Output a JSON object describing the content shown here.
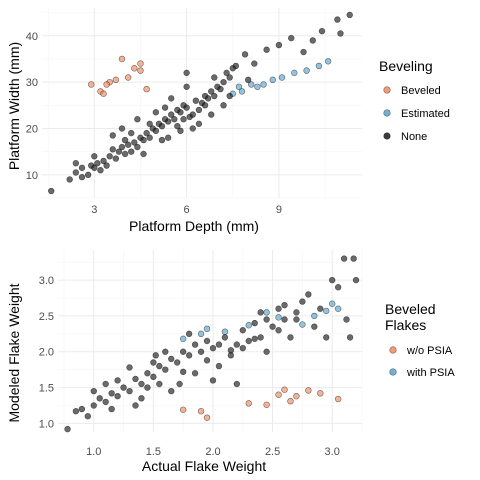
{
  "chart_data": [
    {
      "type": "scatter",
      "xlabel": "Platform Depth (mm)",
      "ylabel": "Platform Width (mm)",
      "xlim": [
        1.3,
        11.7
      ],
      "ylim": [
        5,
        46
      ],
      "xticks": [
        "3",
        "6",
        "9"
      ],
      "xtick_values": [
        3,
        6,
        9
      ],
      "yticks": [
        "10",
        "20",
        "30",
        "40"
      ],
      "ytick_values": [
        10,
        20,
        30,
        40
      ],
      "grid": true,
      "legend": {
        "title_lines": [
          "Beveling"
        ],
        "placement": "right",
        "entries": [
          {
            "label": "Beveled",
            "color": "#f08a5d"
          },
          {
            "label": "Estimated",
            "color": "#5aa3cc"
          },
          {
            "label": "None",
            "color": "#1a1a1a"
          }
        ]
      },
      "series": [
        {
          "name": "Beveled",
          "color": "#f08a5d",
          "points": [
            [
              2.9,
              29.5
            ],
            [
              3.2,
              28
            ],
            [
              3.3,
              27.5
            ],
            [
              3.5,
              30
            ],
            [
              3.7,
              30.5
            ],
            [
              3.9,
              35
            ],
            [
              4.1,
              31
            ],
            [
              4.3,
              33
            ],
            [
              4.5,
              32.5
            ],
            [
              4.5,
              34
            ],
            [
              4.7,
              28.5
            ],
            [
              3.4,
              29.5
            ]
          ]
        },
        {
          "name": "Estimated",
          "color": "#5aa3cc",
          "points": [
            [
              7.5,
              27.5
            ],
            [
              7.8,
              28
            ],
            [
              8.1,
              29.5
            ],
            [
              8.5,
              29.5
            ],
            [
              8.8,
              30.5
            ],
            [
              9.1,
              31
            ],
            [
              9.5,
              32
            ],
            [
              9.9,
              32.5
            ],
            [
              10.3,
              33.5
            ],
            [
              10.6,
              34.5
            ],
            [
              8.3,
              29
            ],
            [
              7.7,
              29
            ]
          ]
        },
        {
          "name": "None",
          "color": "#1a1a1a",
          "points": [
            [
              1.6,
              6.5
            ],
            [
              2.2,
              9
            ],
            [
              2.4,
              10.5
            ],
            [
              2.6,
              11.5
            ],
            [
              2.8,
              10
            ],
            [
              2.9,
              12
            ],
            [
              3.0,
              11.5
            ],
            [
              3.1,
              12.5
            ],
            [
              3.2,
              11
            ],
            [
              3.3,
              13
            ],
            [
              3.4,
              12
            ],
            [
              3.5,
              14
            ],
            [
              3.6,
              15.5
            ],
            [
              3.7,
              13.5
            ],
            [
              3.8,
              15
            ],
            [
              3.9,
              16
            ],
            [
              4.0,
              14.5
            ],
            [
              4.1,
              16.5
            ],
            [
              4.2,
              15
            ],
            [
              4.3,
              17
            ],
            [
              4.4,
              16
            ],
            [
              4.5,
              18
            ],
            [
              4.6,
              17.5
            ],
            [
              4.7,
              19
            ],
            [
              4.8,
              18
            ],
            [
              4.9,
              20
            ],
            [
              5.0,
              19.5
            ],
            [
              5.1,
              21
            ],
            [
              5.2,
              20.5
            ],
            [
              5.3,
              22
            ],
            [
              5.4,
              21.5
            ],
            [
              5.5,
              23
            ],
            [
              5.6,
              22
            ],
            [
              5.7,
              24
            ],
            [
              5.8,
              23.5
            ],
            [
              5.9,
              25
            ],
            [
              6.0,
              24.5
            ],
            [
              6.1,
              22.5
            ],
            [
              6.2,
              23
            ],
            [
              6.3,
              26
            ],
            [
              6.4,
              24
            ],
            [
              6.5,
              25.5
            ],
            [
              6.6,
              27
            ],
            [
              6.7,
              26.5
            ],
            [
              6.8,
              28
            ],
            [
              6.9,
              27
            ],
            [
              7.0,
              29
            ],
            [
              7.1,
              28.5
            ],
            [
              7.2,
              30
            ],
            [
              7.3,
              32
            ],
            [
              7.4,
              31
            ],
            [
              7.6,
              33.5
            ],
            [
              7.9,
              36
            ],
            [
              8.2,
              34
            ],
            [
              8.6,
              37
            ],
            [
              9.0,
              38
            ],
            [
              9.4,
              39.5
            ],
            [
              9.8,
              36.5
            ],
            [
              10.4,
              41
            ],
            [
              10.9,
              43.5
            ],
            [
              11.3,
              44.5
            ],
            [
              11.0,
              40.5
            ],
            [
              10.1,
              39
            ],
            [
              5.4,
              18
            ],
            [
              5.8,
              19.5
            ],
            [
              6.2,
              20
            ],
            [
              4.8,
              21
            ],
            [
              5.0,
              23.5
            ],
            [
              4.2,
              19
            ],
            [
              3.9,
              20
            ],
            [
              6.8,
              23
            ],
            [
              7.2,
              25
            ],
            [
              6.0,
              29
            ],
            [
              5.5,
              26.5
            ],
            [
              6.9,
              31
            ],
            [
              7.5,
              33
            ],
            [
              3.0,
              14
            ],
            [
              2.6,
              9.5
            ],
            [
              5.2,
              17.5
            ],
            [
              4.6,
              14.5
            ],
            [
              6.4,
              21
            ],
            [
              5.9,
              22
            ],
            [
              5.3,
              24.5
            ],
            [
              6.6,
              25
            ],
            [
              7.4,
              27
            ],
            [
              4.4,
              22
            ],
            [
              3.6,
              18.5
            ],
            [
              8.0,
              30.5
            ],
            [
              2.4,
              12.5
            ],
            [
              6.0,
              32
            ],
            [
              4.0,
              17.5
            ],
            [
              5.7,
              20.5
            ]
          ]
        }
      ]
    },
    {
      "type": "scatter",
      "xlabel": "Actual Flake Weight",
      "ylabel": "Modeled Flake Weight",
      "xlim": [
        0.7,
        3.25
      ],
      "ylim": [
        0.88,
        3.42
      ],
      "xticks": [
        "1.0",
        "1.5",
        "2.0",
        "2.5",
        "3.0"
      ],
      "xtick_values": [
        1.0,
        1.5,
        2.0,
        2.5,
        3.0
      ],
      "yticks": [
        "1.0",
        "1.5",
        "2.0",
        "2.5",
        "3.0"
      ],
      "ytick_values": [
        1.0,
        1.5,
        2.0,
        2.5,
        3.0
      ],
      "grid": true,
      "legend": {
        "title_lines": [
          "Beveled",
          "Flakes"
        ],
        "placement": "right",
        "entries": [
          {
            "label": "w/o PSIA",
            "color": "#f08a5d"
          },
          {
            "label": "with PSIA",
            "color": "#5aa3cc"
          }
        ]
      },
      "series": [
        {
          "name": "w/o PSIA",
          "color": "#f08a5d",
          "points": [
            [
              1.75,
              1.19
            ],
            [
              1.9,
              1.17
            ],
            [
              1.95,
              1.08
            ],
            [
              2.3,
              1.28
            ],
            [
              2.45,
              1.26
            ],
            [
              2.6,
              1.47
            ],
            [
              2.65,
              1.31
            ],
            [
              2.7,
              1.38
            ],
            [
              2.8,
              1.46
            ],
            [
              2.9,
              1.42
            ],
            [
              3.05,
              1.34
            ],
            [
              2.55,
              1.4
            ]
          ]
        },
        {
          "name": "with PSIA",
          "color": "#5aa3cc",
          "points": [
            [
              1.75,
              2.18
            ],
            [
              1.9,
              2.25
            ],
            [
              1.95,
              2.32
            ],
            [
              2.3,
              2.37
            ],
            [
              2.45,
              2.55
            ],
            [
              2.55,
              2.48
            ],
            [
              2.75,
              2.38
            ],
            [
              2.85,
              2.5
            ],
            [
              2.95,
              2.57
            ],
            [
              3.0,
              2.67
            ],
            [
              3.05,
              2.6
            ],
            [
              2.1,
              2.28
            ]
          ]
        },
        {
          "name": "None",
          "color": "#1a1a1a",
          "points": [
            [
              0.78,
              0.92
            ],
            [
              0.85,
              1.17
            ],
            [
              0.95,
              1.1
            ],
            [
              1.0,
              1.25
            ],
            [
              1.05,
              1.35
            ],
            [
              1.1,
              1.3
            ],
            [
              1.15,
              1.42
            ],
            [
              1.2,
              1.38
            ],
            [
              1.25,
              1.5
            ],
            [
              1.3,
              1.45
            ],
            [
              1.35,
              1.62
            ],
            [
              1.4,
              1.55
            ],
            [
              1.45,
              1.7
            ],
            [
              1.5,
              1.65
            ],
            [
              1.52,
              1.95
            ],
            [
              1.55,
              1.8
            ],
            [
              1.6,
              1.75
            ],
            [
              1.65,
              1.9
            ],
            [
              1.7,
              1.85
            ],
            [
              1.72,
              1.55
            ],
            [
              1.75,
              2.0
            ],
            [
              1.8,
              1.95
            ],
            [
              1.85,
              2.1
            ],
            [
              1.9,
              2.0
            ],
            [
              1.95,
              2.15
            ],
            [
              2.0,
              2.05
            ],
            [
              2.05,
              1.8
            ],
            [
              2.1,
              2.2
            ],
            [
              2.15,
              1.95
            ],
            [
              2.2,
              2.1
            ],
            [
              2.25,
              2.3
            ],
            [
              2.3,
              2.15
            ],
            [
              2.35,
              2.4
            ],
            [
              2.4,
              2.2
            ],
            [
              2.45,
              2.0
            ],
            [
              2.5,
              2.35
            ],
            [
              2.55,
              2.6
            ],
            [
              2.6,
              2.45
            ],
            [
              2.65,
              2.2
            ],
            [
              2.7,
              2.55
            ],
            [
              2.75,
              2.7
            ],
            [
              2.8,
              2.8
            ],
            [
              2.85,
              2.35
            ],
            [
              2.9,
              2.6
            ],
            [
              2.95,
              2.2
            ],
            [
              3.0,
              3.0
            ],
            [
              3.05,
              2.9
            ],
            [
              3.1,
              3.3
            ],
            [
              3.15,
              2.2
            ],
            [
              3.18,
              3.3
            ],
            [
              3.2,
              3.0
            ],
            [
              3.12,
              2.45
            ],
            [
              1.6,
              2.0
            ],
            [
              1.4,
              1.35
            ],
            [
              1.2,
              1.6
            ],
            [
              1.1,
              1.55
            ],
            [
              0.9,
              1.2
            ],
            [
              1.45,
              1.5
            ],
            [
              1.65,
              1.45
            ],
            [
              1.85,
              1.7
            ],
            [
              2.05,
              2.1
            ],
            [
              2.25,
              2.05
            ],
            [
              2.4,
              2.55
            ],
            [
              2.55,
              2.3
            ],
            [
              2.7,
              2.45
            ],
            [
              1.35,
              1.25
            ],
            [
              1.55,
              1.55
            ],
            [
              1.75,
              1.72
            ],
            [
              1.95,
              1.88
            ],
            [
              2.15,
              2.02
            ],
            [
              2.35,
              2.18
            ],
            [
              1.3,
              1.78
            ],
            [
              1.8,
              2.25
            ],
            [
              2.2,
              1.55
            ],
            [
              2.6,
              2.65
            ],
            [
              1.0,
              1.45
            ],
            [
              1.5,
              1.85
            ],
            [
              2.0,
              1.6
            ],
            [
              1.15,
              1.2
            ],
            [
              2.45,
              2.45
            ]
          ]
        }
      ]
    }
  ]
}
